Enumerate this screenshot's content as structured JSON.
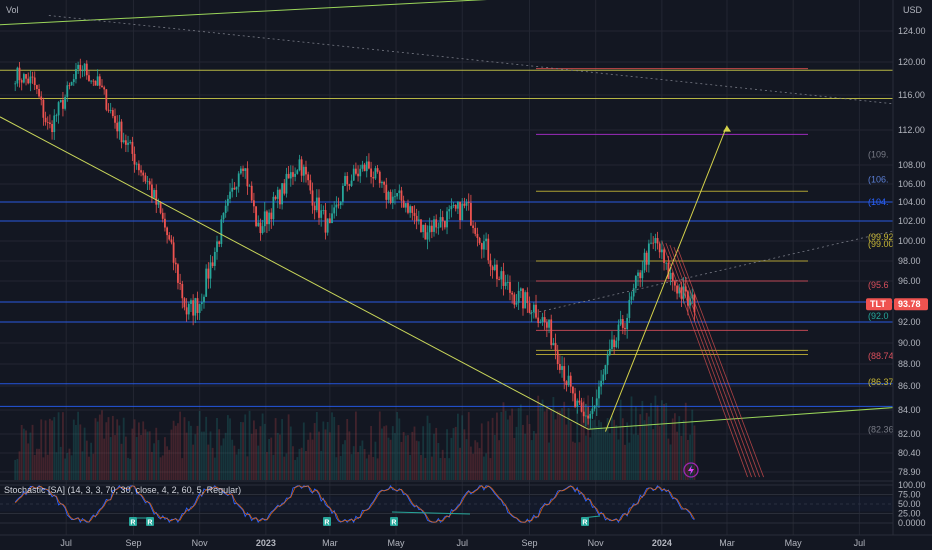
{
  "header": {
    "vol_label": "Vol",
    "currency": "USD"
  },
  "price_badge": {
    "ticker": "TLT",
    "price": "93.78",
    "price_value": 93.78
  },
  "stoch_title": "Stochastic [SA] (14, 3, 3, 70, 30, close, 4, 2, 60, 5, Regular)",
  "stoch_labels": [
    "100.00",
    "75.00",
    "50.00",
    "25.00",
    "0.0000"
  ],
  "stoch_r_labels": [
    "R",
    "R",
    "R",
    "R",
    "R"
  ],
  "overlay_labels": [
    {
      "text": "(109.",
      "y": 109.2,
      "color": "#787b86"
    },
    {
      "text": "(106.",
      "y": 106.5,
      "color": "#5b7fd6"
    },
    {
      "text": "(104.",
      "y": 104.0,
      "color": "#2962ff"
    },
    {
      "text": "(99.92",
      "y": 100.4,
      "color": "#c9b836"
    },
    {
      "text": "(99.00",
      "y": 99.7,
      "color": "#c9b836"
    },
    {
      "text": "(95.6",
      "y": 95.6,
      "color": "#d94f5c"
    },
    {
      "text": "(92.0",
      "y": 92.6,
      "color": "#26a69a"
    },
    {
      "text": "(88.74",
      "y": 88.74,
      "color": "#d94f5c"
    },
    {
      "text": "(86.37",
      "y": 86.37,
      "color": "#c9b836"
    },
    {
      "text": "(82.36",
      "y": 82.36,
      "color": "#787b86"
    }
  ],
  "chart_data": {
    "type": "candlestick",
    "title": "",
    "x_ticks": [
      "Jul",
      "Sep",
      "Nov",
      "2023",
      "Mar",
      "May",
      "Jul",
      "Sep",
      "Nov",
      "2024",
      "Mar",
      "May",
      "Jul"
    ],
    "y_ticks": [
      "124.00",
      "120.00",
      "116.00",
      "112.00",
      "108.00",
      "106.00",
      "104.00",
      "102.00",
      "100.00",
      "98.00",
      "96.00",
      "94.00",
      "92.00",
      "90.00",
      "88.00",
      "86.00",
      "84.00",
      "82.00",
      "80.40",
      "78.90"
    ],
    "y_tick_values": [
      124,
      120,
      116,
      112,
      108,
      106,
      104,
      102,
      100,
      98,
      96,
      94,
      92,
      90,
      88,
      86,
      84,
      82,
      80.4,
      78.9
    ],
    "price_path": [
      {
        "d": "2022-05-15",
        "p": 118.5
      },
      {
        "d": "2022-06-01",
        "p": 117.5
      },
      {
        "d": "2022-06-15",
        "p": 112.0
      },
      {
        "d": "2022-07-01",
        "p": 116.0
      },
      {
        "d": "2022-07-15",
        "p": 119.5
      },
      {
        "d": "2022-08-01",
        "p": 117.0
      },
      {
        "d": "2022-08-15",
        "p": 113.0
      },
      {
        "d": "2022-09-01",
        "p": 109.0
      },
      {
        "d": "2022-09-15",
        "p": 106.0
      },
      {
        "d": "2022-10-01",
        "p": 101.0
      },
      {
        "d": "2022-10-20",
        "p": 93.0
      },
      {
        "d": "2022-11-01",
        "p": 94.0
      },
      {
        "d": "2022-11-15",
        "p": 99.0
      },
      {
        "d": "2022-12-01",
        "p": 105.0
      },
      {
        "d": "2022-12-10",
        "p": 109.0
      },
      {
        "d": "2022-12-25",
        "p": 101.0
      },
      {
        "d": "2023-01-15",
        "p": 105.0
      },
      {
        "d": "2023-02-01",
        "p": 108.5
      },
      {
        "d": "2023-02-15",
        "p": 104.0
      },
      {
        "d": "2023-03-01",
        "p": 101.0
      },
      {
        "d": "2023-03-15",
        "p": 106.0
      },
      {
        "d": "2023-04-05",
        "p": 108.0
      },
      {
        "d": "2023-04-20",
        "p": 105.0
      },
      {
        "d": "2023-05-10",
        "p": 104.0
      },
      {
        "d": "2023-05-25",
        "p": 101.0
      },
      {
        "d": "2023-06-10",
        "p": 102.0
      },
      {
        "d": "2023-07-05",
        "p": 103.5
      },
      {
        "d": "2023-07-20",
        "p": 100.0
      },
      {
        "d": "2023-08-05",
        "p": 96.0
      },
      {
        "d": "2023-08-20",
        "p": 94.5
      },
      {
        "d": "2023-09-05",
        "p": 93.5
      },
      {
        "d": "2023-09-20",
        "p": 91.0
      },
      {
        "d": "2023-10-01",
        "p": 88.0
      },
      {
        "d": "2023-10-10",
        "p": 85.0
      },
      {
        "d": "2023-10-20",
        "p": 83.0
      },
      {
        "d": "2023-11-01",
        "p": 84.5
      },
      {
        "d": "2023-11-15",
        "p": 89.0
      },
      {
        "d": "2023-12-01",
        "p": 93.0
      },
      {
        "d": "2023-12-15",
        "p": 98.0
      },
      {
        "d": "2023-12-27",
        "p": 100.0
      },
      {
        "d": "2024-01-05",
        "p": 97.0
      },
      {
        "d": "2024-01-15",
        "p": 95.5
      },
      {
        "d": "2024-01-25",
        "p": 94.0
      },
      {
        "d": "2024-02-01",
        "p": 93.78
      }
    ],
    "horizontal_levels": [
      {
        "y": 119.0,
        "color": "#d4d14a"
      },
      {
        "y": 115.6,
        "color": "#d4d14a"
      },
      {
        "y": 119.2,
        "color": "#e05050"
      },
      {
        "y": 111.5,
        "color": "#b42fd6"
      },
      {
        "y": 104.0,
        "color": "#2962ff"
      },
      {
        "y": 105.2,
        "color": "#c9b836"
      },
      {
        "y": 102.0,
        "color": "#2962ff"
      },
      {
        "y": 98.0,
        "color": "#c9b836"
      },
      {
        "y": 96.0,
        "color": "#d94f5c"
      },
      {
        "y": 94.0,
        "color": "#2962ff"
      },
      {
        "y": 92.0,
        "color": "#2962ff"
      },
      {
        "y": 91.2,
        "color": "#d94f5c"
      },
      {
        "y": 89.3,
        "color": "#c9b836"
      },
      {
        "y": 88.9,
        "color": "#c9b836"
      },
      {
        "y": 86.2,
        "color": "#2962ff"
      },
      {
        "y": 84.3,
        "color": "#2962ff"
      }
    ],
    "trendlines": [
      {
        "x1": "2022-05-01",
        "y1": 124.8,
        "x2": "2024-04-15",
        "y2": 130.0,
        "color": "#9bd65a"
      },
      {
        "x1": "2022-05-01",
        "y1": 113.5,
        "x2": "2023-10-25",
        "y2": 82.4,
        "color": "#c9d65a"
      },
      {
        "x1": "2023-10-25",
        "y1": 82.4,
        "x2": "2024-08-01",
        "y2": 84.2,
        "color": "#9bd65a"
      },
      {
        "x1": "2023-11-10",
        "y1": 82.2,
        "x2": "2024-03-01",
        "y2": 112.5,
        "color": "#d4d14a"
      }
    ],
    "down_channel": {
      "x1": "2024-01-01",
      "y1": 100.0,
      "x2": "2024-03-20",
      "y2": 78.5,
      "color": "#e05050"
    },
    "stochastic": {
      "upper": 70,
      "lower": 30,
      "colors": {
        "k": "#2962ff",
        "d": "#ff6d00",
        "above": "#e05050"
      }
    }
  },
  "colors": {
    "up": "#26a69a",
    "down": "#ef5350",
    "bg": "#131722",
    "grid": "#232632",
    "text": "#b2b5be"
  }
}
